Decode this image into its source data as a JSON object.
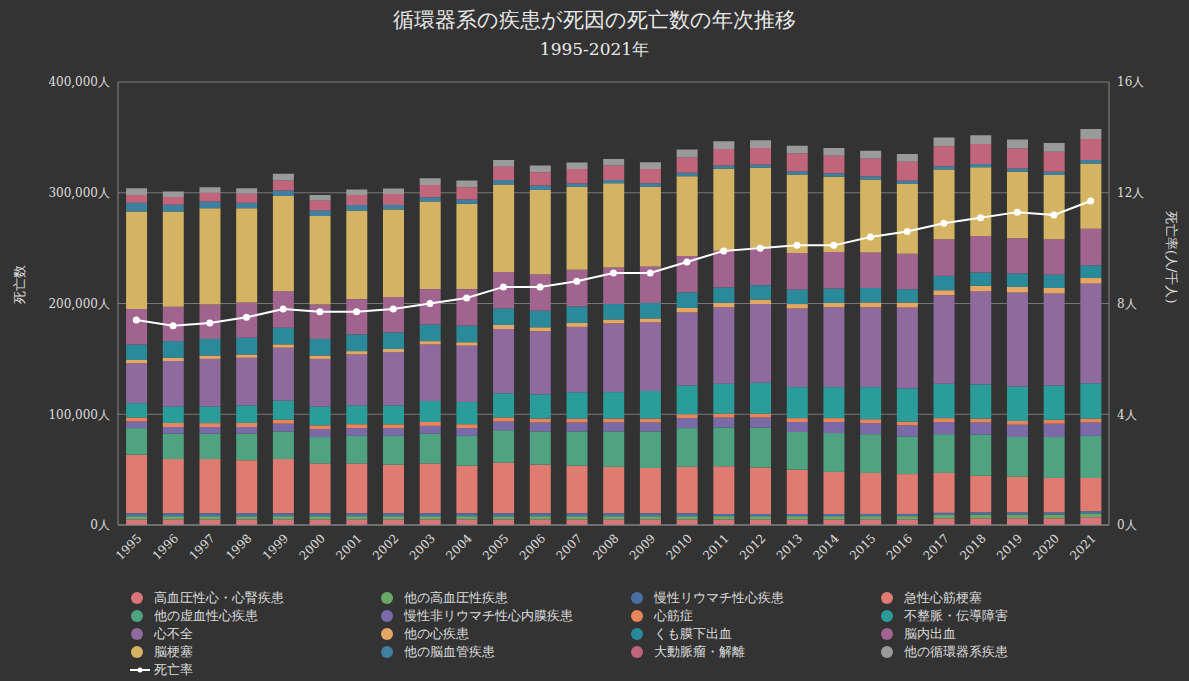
{
  "chart_data": {
    "type": "bar",
    "title": "循環器系の疾患が死因の死亡数の年次推移",
    "subtitle": "1995-2021年",
    "categories": [
      "1995",
      "1996",
      "1997",
      "1998",
      "1999",
      "2000",
      "2001",
      "2002",
      "2003",
      "2004",
      "2005",
      "2006",
      "2007",
      "2008",
      "2009",
      "2010",
      "2011",
      "2012",
      "2013",
      "2014",
      "2015",
      "2016",
      "2017",
      "2018",
      "2019",
      "2020",
      "2021"
    ],
    "y_label": "死亡数",
    "y2_label": "死亡率(人/千人)",
    "ylim": [
      0,
      400000
    ],
    "yticks": [
      {
        "value": 0,
        "label": "0人"
      },
      {
        "value": 100000,
        "label": "100,000人"
      },
      {
        "value": 200000,
        "label": "200,000人"
      },
      {
        "value": 300000,
        "label": "300,000人"
      },
      {
        "value": 400000,
        "label": "400,000人"
      }
    ],
    "y2lim": [
      0,
      16
    ],
    "y2ticks": [
      {
        "value": 0,
        "label": "0人"
      },
      {
        "value": 4,
        "label": "4人"
      },
      {
        "value": 8,
        "label": "8人"
      },
      {
        "value": 12,
        "label": "12人"
      },
      {
        "value": 16,
        "label": "16人"
      }
    ],
    "stacked": true,
    "grid": true,
    "legend": "bottom",
    "series": [
      {
        "name": "高血圧性心・心腎疾患",
        "color": "#d9747a",
        "values": [
          5000,
          5000,
          5000,
          5000,
          5000,
          5000,
          5000,
          5000,
          5000,
          5000,
          5000,
          5000,
          5000,
          5000,
          5000,
          5000,
          5000,
          5000,
          5000,
          5000,
          5000,
          5000,
          6000,
          6000,
          6000,
          6000,
          7000
        ]
      },
      {
        "name": "他の高血圧性疾患",
        "color": "#6aa86a",
        "values": [
          3000,
          3000,
          3000,
          3000,
          3000,
          3000,
          3000,
          3000,
          3000,
          3000,
          3000,
          3000,
          3000,
          3000,
          3000,
          3000,
          3000,
          3000,
          3000,
          3000,
          3000,
          3000,
          3000,
          3500,
          3500,
          3500,
          3500
        ]
      },
      {
        "name": "慢性リウマチ性心疾患",
        "color": "#4a6fa5",
        "values": [
          2500,
          2500,
          2500,
          2500,
          2500,
          2500,
          2500,
          2500,
          2500,
          2500,
          2500,
          2500,
          2500,
          2500,
          2500,
          2500,
          2000,
          2000,
          2000,
          2000,
          2000,
          2000,
          2000,
          2000,
          2000,
          2000,
          2000
        ]
      },
      {
        "name": "急性心筋梗塞",
        "color": "#e07b72",
        "values": [
          53000,
          49000,
          49000,
          48000,
          49000,
          45000,
          45000,
          44000,
          45000,
          43000,
          46000,
          44000,
          43000,
          42000,
          41000,
          42000,
          43000,
          42000,
          40000,
          38000,
          37000,
          36000,
          36000,
          33000,
          32000,
          31000,
          30000
        ]
      },
      {
        "name": "他の虚血性心疾患",
        "color": "#4fa381",
        "values": [
          24000,
          23000,
          23000,
          24000,
          25000,
          24000,
          25000,
          26000,
          27000,
          27000,
          29000,
          30000,
          31000,
          32000,
          33000,
          35000,
          35000,
          36000,
          34000,
          35000,
          35000,
          34000,
          35000,
          37000,
          36000,
          37000,
          38000
        ]
      },
      {
        "name": "慢性非リウマチ性心内膜疾患",
        "color": "#7b6aa8",
        "values": [
          6000,
          6000,
          6000,
          6000,
          7000,
          7000,
          7000,
          7000,
          7000,
          7000,
          8000,
          8000,
          8000,
          8000,
          8000,
          9000,
          9000,
          9000,
          9000,
          10000,
          10000,
          10000,
          11000,
          11000,
          11000,
          12000,
          12000
        ]
      },
      {
        "name": "心筋症",
        "color": "#e8855a",
        "values": [
          3500,
          3600,
          3500,
          3500,
          3600,
          3500,
          3500,
          3400,
          3500,
          3500,
          3500,
          3500,
          3400,
          3500,
          3500,
          3500,
          3600,
          3500,
          3500,
          3500,
          3500,
          3400,
          3500,
          3500,
          3500,
          3500,
          3500
        ]
      },
      {
        "name": "不整脈・伝導障害",
        "color": "#2a9d9a",
        "values": [
          13000,
          15000,
          15000,
          16000,
          17000,
          17000,
          17000,
          17000,
          19000,
          20000,
          22000,
          22000,
          24000,
          24000,
          25000,
          26000,
          27000,
          28000,
          28000,
          28000,
          29000,
          30000,
          31000,
          31000,
          31000,
          31000,
          32000
        ]
      },
      {
        "name": "心不全",
        "color": "#8e6a9e",
        "values": [
          36000,
          41000,
          43000,
          43000,
          48000,
          43000,
          46000,
          48000,
          51000,
          51000,
          58000,
          57000,
          59000,
          62000,
          62000,
          66000,
          69000,
          71000,
          71000,
          72000,
          72000,
          73000,
          80000,
          84000,
          85000,
          83000,
          90000
        ]
      },
      {
        "name": "他の心疾患",
        "color": "#e6a765",
        "values": [
          3000,
          3000,
          3000,
          3000,
          3000,
          3000,
          3000,
          3000,
          3000,
          3000,
          3500,
          3500,
          3500,
          3500,
          3500,
          4000,
          4000,
          4000,
          4000,
          4000,
          4500,
          4500,
          4500,
          5000,
          5000,
          5000,
          5000
        ]
      },
      {
        "name": "くも膜下出血",
        "color": "#2a8a9a",
        "values": [
          14000,
          15000,
          15000,
          15000,
          15000,
          15000,
          15000,
          15000,
          15000,
          15000,
          15000,
          15000,
          15000,
          14000,
          14000,
          14000,
          14000,
          13000,
          13000,
          13000,
          13000,
          12000,
          13000,
          12000,
          12000,
          12000,
          11500
        ]
      },
      {
        "name": "脳内出血",
        "color": "#a0648f",
        "values": [
          32000,
          31000,
          31000,
          32000,
          33000,
          31000,
          32000,
          32000,
          32000,
          33000,
          33000,
          33000,
          33000,
          33000,
          33000,
          33000,
          33000,
          33000,
          33000,
          33000,
          32000,
          32000,
          33000,
          33000,
          32000,
          32000,
          33000
        ]
      },
      {
        "name": "脳梗塞",
        "color": "#d4b462",
        "values": [
          88000,
          86000,
          87000,
          85000,
          86000,
          80000,
          80000,
          79000,
          79000,
          77000,
          79000,
          76000,
          75000,
          76000,
          72000,
          72000,
          74000,
          73000,
          71000,
          68000,
          66000,
          63000,
          63000,
          62000,
          60000,
          58000,
          59000
        ]
      },
      {
        "name": "他の脳血管疾患",
        "color": "#3f7fa0",
        "values": [
          8000,
          6000,
          6000,
          5000,
          5000,
          5000,
          5000,
          4000,
          4000,
          4000,
          4000,
          4000,
          3000,
          3000,
          3000,
          3000,
          3000,
          3000,
          3000,
          3000,
          3000,
          3000,
          3000,
          3000,
          3000,
          3000,
          3000
        ]
      },
      {
        "name": "大動脈瘤・解離",
        "color": "#c0657a",
        "values": [
          7000,
          7000,
          8000,
          8000,
          9000,
          9000,
          9000,
          10000,
          11000,
          11000,
          12000,
          12000,
          13000,
          13000,
          13000,
          14000,
          15000,
          15000,
          16000,
          16000,
          16000,
          17000,
          18000,
          18000,
          18000,
          18000,
          19000
        ]
      },
      {
        "name": "他の循環器系疾患",
        "color": "#9a9a9a",
        "values": [
          6000,
          5000,
          5000,
          5000,
          6000,
          5000,
          5000,
          5000,
          6000,
          6000,
          6000,
          6000,
          6000,
          6000,
          6000,
          7000,
          7000,
          7000,
          7000,
          7000,
          7000,
          7000,
          8000,
          8000,
          8000,
          8000,
          9000
        ]
      },
      {
        "name": "死亡率",
        "type": "line",
        "axis": "y2",
        "color": "#ffffff",
        "marker": "circle",
        "values": [
          7.4,
          7.2,
          7.3,
          7.5,
          7.8,
          7.7,
          7.7,
          7.8,
          8.0,
          8.2,
          8.6,
          8.6,
          8.8,
          9.1,
          9.1,
          9.5,
          9.9,
          10.0,
          10.1,
          10.1,
          10.4,
          10.6,
          10.9,
          11.1,
          11.3,
          11.2,
          11.7
        ]
      }
    ]
  }
}
